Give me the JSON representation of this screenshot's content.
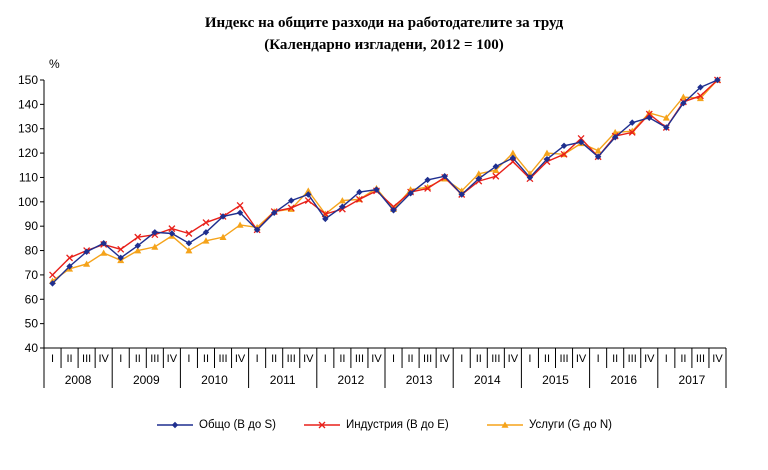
{
  "chart_data": {
    "type": "line",
    "title": "Индекс на общите разходи на работодателите за труд",
    "subtitle": "(Календарно изгладени, 2012 = 100)",
    "ylabel": "%",
    "ylim": [
      40,
      150
    ],
    "yticks": [
      40,
      50,
      60,
      70,
      80,
      90,
      100,
      110,
      120,
      130,
      140,
      150
    ],
    "grid": false,
    "legend_position": "bottom",
    "quarters": [
      "I",
      "II",
      "III",
      "IV"
    ],
    "years": [
      "2008",
      "2009",
      "2010",
      "2011",
      "2012",
      "2013",
      "2014",
      "2015",
      "2016",
      "2017"
    ],
    "series": [
      {
        "name": "Общо (B до S)",
        "color": "#1f2f8f",
        "marker": "diamond",
        "values": [
          66.5,
          73.5,
          79.5,
          83,
          77,
          82,
          87.5,
          87,
          83,
          87.5,
          94,
          95.5,
          88.5,
          95.5,
          100.5,
          103,
          93,
          98,
          104,
          105,
          96.5,
          103.5,
          109,
          110.5,
          103,
          109.5,
          114.5,
          118,
          110,
          117.5,
          123,
          124.5,
          118.5,
          126.5,
          132.5,
          134.5,
          130.5,
          140.5,
          147,
          150
        ]
      },
      {
        "name": "Индустрия (B до E)",
        "color": "#e8201a",
        "marker": "x",
        "values": [
          70,
          77,
          80,
          82.5,
          80.5,
          85.5,
          86.5,
          89,
          87,
          91.5,
          94,
          98.5,
          88.5,
          96,
          97.5,
          100.5,
          95,
          97,
          101,
          104.5,
          98,
          104,
          105.5,
          110,
          103,
          108.5,
          110.5,
          116.5,
          109.5,
          116.5,
          119.5,
          126,
          118.5,
          127,
          128.5,
          136,
          130.5,
          141,
          143.5,
          150
        ]
      },
      {
        "name": "Услуги (G до N)",
        "color": "#f5a31a",
        "marker": "triangle",
        "values": [
          67.5,
          72.5,
          74.5,
          79,
          76,
          80,
          81.5,
          86,
          80,
          84,
          85.5,
          90.5,
          89.5,
          96,
          97,
          104.5,
          95,
          100.5,
          101,
          105.5,
          97,
          105,
          106,
          109.5,
          104.5,
          111.5,
          113,
          120,
          111.5,
          120,
          119.5,
          124,
          121,
          128.5,
          129,
          136.5,
          134.5,
          143,
          142.5,
          150
        ]
      }
    ]
  }
}
